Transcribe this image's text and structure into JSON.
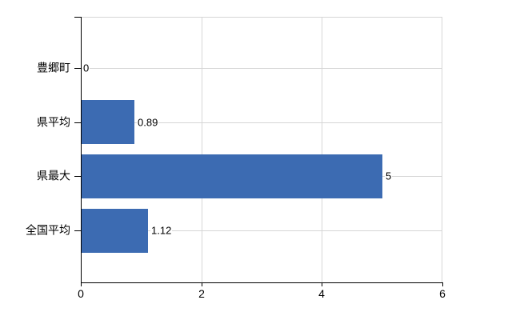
{
  "chart_data": {
    "type": "bar",
    "orientation": "horizontal",
    "title": "",
    "xlabel": "",
    "ylabel": "",
    "categories": [
      "豊郷町",
      "県平均",
      "県最大",
      "全国平均"
    ],
    "values": [
      0,
      0.89,
      5,
      1.12
    ],
    "value_labels": [
      "0",
      "0.89",
      "5",
      "1.12"
    ],
    "x_ticks": [
      0,
      2,
      4,
      6
    ],
    "x_tick_labels": [
      "0",
      "2",
      "4",
      "6"
    ],
    "xlim": [
      0,
      6
    ],
    "grid": true,
    "legend": false,
    "colors": {
      "bar_fill": "#3C6BB2",
      "gridline": "#D6D6D6",
      "axis": "#000000",
      "text": "#000000",
      "background": "#FFFFFF"
    }
  }
}
